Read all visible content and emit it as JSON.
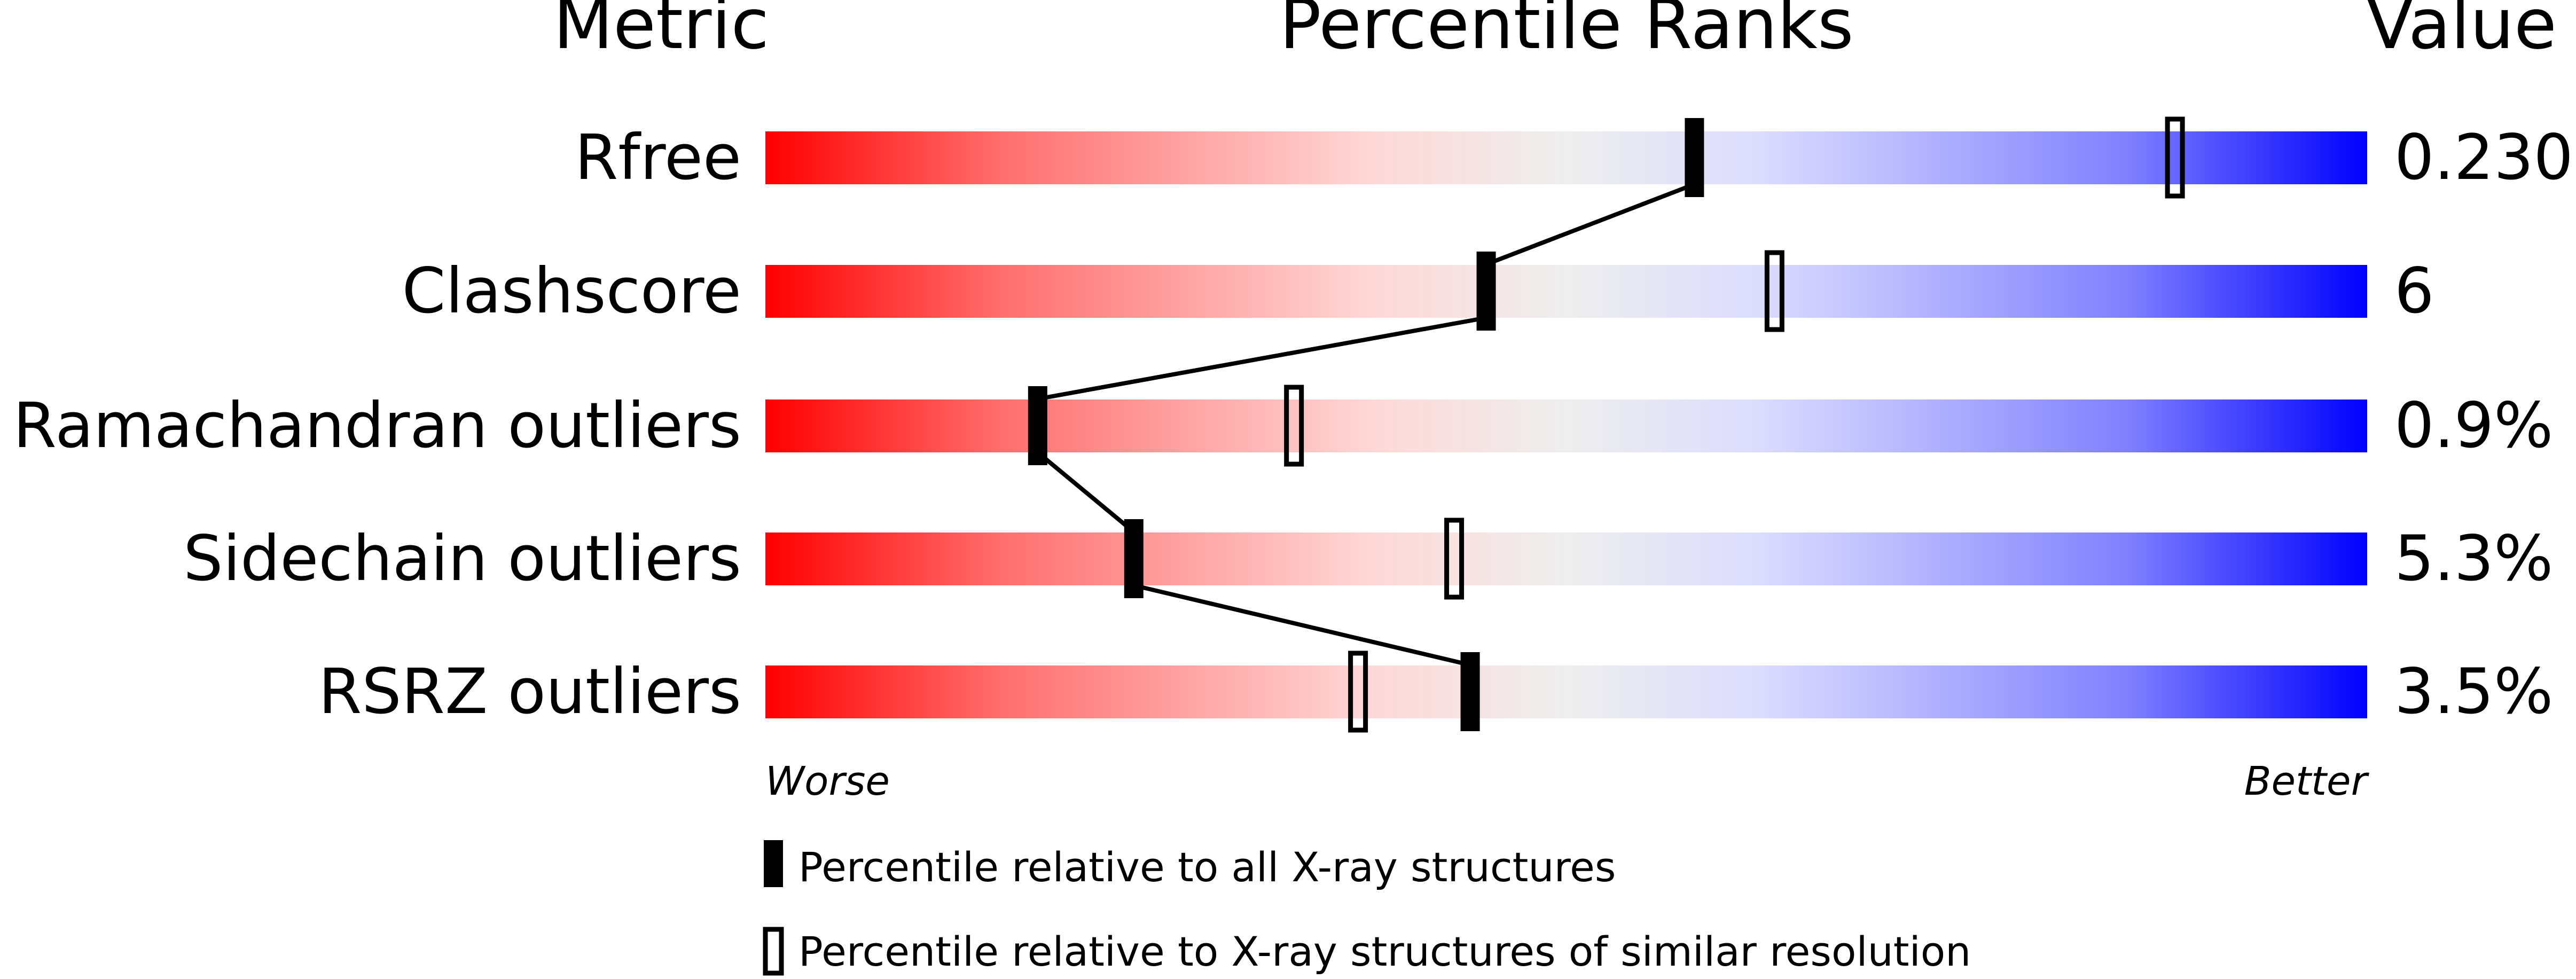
{
  "chart_data": {
    "type": "bar",
    "headers": {
      "metric": "Metric",
      "percentile": "Percentile Ranks",
      "value": "Value"
    },
    "xlim": [
      0,
      100
    ],
    "gradient_colors": [
      "#ff0000",
      "#ff7070",
      "#ffd8d8",
      "#eeeeee",
      "#dcdcff",
      "#8080ff",
      "#0000ff"
    ],
    "rows": [
      {
        "metric": "Rfree",
        "value": "0.230",
        "percentile_all": 58,
        "percentile_similar": 88
      },
      {
        "metric": "Clashscore",
        "value": "6",
        "percentile_all": 45,
        "percentile_similar": 63
      },
      {
        "metric": "Ramachandran outliers",
        "value": "0.9%",
        "percentile_all": 17,
        "percentile_similar": 33
      },
      {
        "metric": "Sidechain outliers",
        "value": "5.3%",
        "percentile_all": 23,
        "percentile_similar": 43
      },
      {
        "metric": "RSRZ outliers",
        "value": "3.5%",
        "percentile_all": 44,
        "percentile_similar": 37
      }
    ],
    "axis": {
      "worse": "Worse",
      "better": "Better"
    },
    "legend": [
      {
        "marker": "filled",
        "label": "Percentile relative to all X-ray structures"
      },
      {
        "marker": "open",
        "label": "Percentile relative to X-ray structures of similar resolution"
      }
    ]
  }
}
